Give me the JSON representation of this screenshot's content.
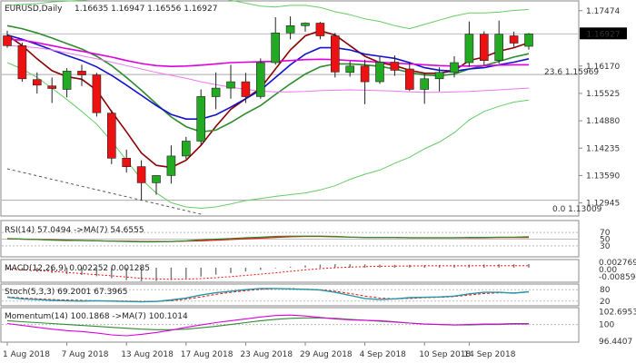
{
  "header": {
    "symbol_timeframe": "EURUSD,Daily",
    "ohlc": "1.16635 1.16947 1.16556 1.16927"
  },
  "price_panel": {
    "current_price_label": "1.16927",
    "fib_236_label": "23.6 1.15969",
    "fib_0_label": "0.0 1.13009"
  },
  "rsi_panel": {
    "label": "RSI(14) 57.0494 ->MA(7) 54.6555"
  },
  "macd_panel": {
    "label": "MACD(12,26,9) 0.002252 0.001285"
  },
  "stoch_panel": {
    "label": "Stoch(5,3,3) 69.2001 67.3965"
  },
  "momentum_panel": {
    "label": "Momentum(14) 100.1868 ->MA(7) 100.1014"
  },
  "colors": {
    "bull_candle": "#22aa22",
    "bear_candle": "#ee1111",
    "ma_fast": "#8b0000",
    "ma_mid": "#2e8b2e",
    "ma_blue": "#1111cc",
    "ma_magenta": "#dd00dd",
    "ma_pink": "#ee77ee",
    "bollinger": "#66cc66"
  },
  "chart_data": [
    {
      "type": "candlestick",
      "title": "EURUSD,Daily",
      "ylim": [
        1.1268,
        1.1764
      ],
      "y_ticks": [
        1.17474,
        1.16927,
        1.1617,
        1.15525,
        1.1488,
        1.14235,
        1.1359,
        1.12945
      ],
      "y_tick_labels": [
        "1.17474",
        "",
        "1.16170",
        "1.15525",
        "1.14880",
        "1.14235",
        "1.13590",
        "1.12945"
      ],
      "x_tick_labels": [
        "1 Aug 2018",
        "7 Aug 2018",
        "13 Aug 2018",
        "17 Aug 2018",
        "23 Aug 2018",
        "29 Aug 2018",
        "4 Sep 2018",
        "10 Sep 2018",
        "14 Sep 2018"
      ],
      "x_tick_index": [
        0,
        4,
        8,
        12,
        16,
        20,
        24,
        28,
        31
      ],
      "candles": [
        {
          "o": 1.1688,
          "h": 1.17,
          "l": 1.166,
          "c": 1.1665
        },
        {
          "o": 1.1665,
          "h": 1.1672,
          "l": 1.158,
          "c": 1.1587
        },
        {
          "o": 1.1585,
          "h": 1.1602,
          "l": 1.1552,
          "c": 1.1572
        },
        {
          "o": 1.157,
          "h": 1.159,
          "l": 1.153,
          "c": 1.1564
        },
        {
          "o": 1.1562,
          "h": 1.1612,
          "l": 1.1543,
          "c": 1.1605
        },
        {
          "o": 1.1605,
          "h": 1.162,
          "l": 1.157,
          "c": 1.1596
        },
        {
          "o": 1.1596,
          "h": 1.1601,
          "l": 1.1498,
          "c": 1.1507
        },
        {
          "o": 1.1506,
          "h": 1.1513,
          "l": 1.1386,
          "c": 1.14
        },
        {
          "o": 1.14,
          "h": 1.142,
          "l": 1.1366,
          "c": 1.138
        },
        {
          "o": 1.138,
          "h": 1.1395,
          "l": 1.1301,
          "c": 1.1342
        },
        {
          "o": 1.1342,
          "h": 1.136,
          "l": 1.1314,
          "c": 1.1359
        },
        {
          "o": 1.1359,
          "h": 1.143,
          "l": 1.134,
          "c": 1.1405
        },
        {
          "o": 1.1405,
          "h": 1.145,
          "l": 1.1398,
          "c": 1.144
        },
        {
          "o": 1.144,
          "h": 1.1562,
          "l": 1.143,
          "c": 1.1545
        },
        {
          "o": 1.1545,
          "h": 1.1602,
          "l": 1.1515,
          "c": 1.1565
        },
        {
          "o": 1.1565,
          "h": 1.162,
          "l": 1.154,
          "c": 1.158
        },
        {
          "o": 1.158,
          "h": 1.1601,
          "l": 1.153,
          "c": 1.1545
        },
        {
          "o": 1.1545,
          "h": 1.1635,
          "l": 1.154,
          "c": 1.1625
        },
        {
          "o": 1.1625,
          "h": 1.1732,
          "l": 1.162,
          "c": 1.1695
        },
        {
          "o": 1.1695,
          "h": 1.1734,
          "l": 1.168,
          "c": 1.1712
        },
        {
          "o": 1.1712,
          "h": 1.172,
          "l": 1.1698,
          "c": 1.1718
        },
        {
          "o": 1.1718,
          "h": 1.1721,
          "l": 1.168,
          "c": 1.1688
        },
        {
          "o": 1.1688,
          "h": 1.1695,
          "l": 1.159,
          "c": 1.1603
        },
        {
          "o": 1.1602,
          "h": 1.1628,
          "l": 1.1592,
          "c": 1.1617
        },
        {
          "o": 1.1617,
          "h": 1.1632,
          "l": 1.1527,
          "c": 1.158
        },
        {
          "o": 1.158,
          "h": 1.1638,
          "l": 1.1575,
          "c": 1.1626
        },
        {
          "o": 1.1626,
          "h": 1.1642,
          "l": 1.1594,
          "c": 1.1607
        },
        {
          "o": 1.161,
          "h": 1.1625,
          "l": 1.1558,
          "c": 1.1562
        },
        {
          "o": 1.1562,
          "h": 1.1601,
          "l": 1.1528,
          "c": 1.1587
        },
        {
          "o": 1.1587,
          "h": 1.1614,
          "l": 1.1557,
          "c": 1.1602
        },
        {
          "o": 1.1602,
          "h": 1.164,
          "l": 1.159,
          "c": 1.1625
        },
        {
          "o": 1.1625,
          "h": 1.1722,
          "l": 1.1615,
          "c": 1.1692
        },
        {
          "o": 1.1692,
          "h": 1.1699,
          "l": 1.1619,
          "c": 1.163
        },
        {
          "o": 1.163,
          "h": 1.1724,
          "l": 1.1623,
          "c": 1.1692
        },
        {
          "o": 1.1688,
          "h": 1.1698,
          "l": 1.1662,
          "c": 1.1671
        },
        {
          "o": 1.16635,
          "h": 1.16947,
          "l": 1.16556,
          "c": 1.16927
        }
      ],
      "overlays": [
        {
          "key": "ma_fast",
          "values": [
            1.169,
            1.1665,
            1.1634,
            1.1606,
            1.1592,
            1.1586,
            1.156,
            1.151,
            1.1462,
            1.1412,
            1.1383,
            1.1378,
            1.1395,
            1.143,
            1.1475,
            1.1515,
            1.154,
            1.1565,
            1.161,
            1.1655,
            1.1688,
            1.17,
            1.169,
            1.1665,
            1.164,
            1.1625,
            1.1618,
            1.1607,
            1.16,
            1.16,
            1.1606,
            1.163,
            1.1638,
            1.1652,
            1.166,
            1.1672
          ]
        },
        {
          "key": "ma_mid",
          "values": [
            1.1712,
            1.1705,
            1.1695,
            1.1683,
            1.167,
            1.1657,
            1.164,
            1.1618,
            1.159,
            1.156,
            1.1528,
            1.1497,
            1.1474,
            1.1462,
            1.1466,
            1.1484,
            1.1505,
            1.1524,
            1.155,
            1.1575,
            1.1598,
            1.1615,
            1.1622,
            1.1622,
            1.162,
            1.1616,
            1.161,
            1.1602,
            1.1596,
            1.1594,
            1.1598,
            1.161,
            1.1618,
            1.1628,
            1.1638,
            1.1646
          ]
        },
        {
          "key": "ma_blue",
          "values": [
            1.169,
            1.168,
            1.1668,
            1.1655,
            1.1642,
            1.163,
            1.1615,
            1.1595,
            1.1572,
            1.1548,
            1.1524,
            1.1503,
            1.1492,
            1.1492,
            1.1502,
            1.152,
            1.154,
            1.156,
            1.159,
            1.162,
            1.1645,
            1.166,
            1.166,
            1.1655,
            1.1645,
            1.164,
            1.1635,
            1.1625,
            1.1613,
            1.1607,
            1.1605,
            1.161,
            1.1613,
            1.162,
            1.1626,
            1.1634
          ]
        },
        {
          "key": "ma_magenta",
          "values": [
            1.168,
            1.1678,
            1.1672,
            1.1665,
            1.1658,
            1.1652,
            1.1645,
            1.1638,
            1.163,
            1.1623,
            1.1618,
            1.1616,
            1.1617,
            1.1619,
            1.1622,
            1.1625,
            1.1626,
            1.1627,
            1.1628,
            1.163,
            1.1632,
            1.1633,
            1.1632,
            1.163,
            1.1628,
            1.1626,
            1.1624,
            1.1622,
            1.162,
            1.1618,
            1.1617,
            1.1617,
            1.1618,
            1.1619,
            1.162,
            1.162
          ]
        },
        {
          "key": "ma_pink",
          "values": [
            1.1665,
            1.1663,
            1.166,
            1.1655,
            1.1648,
            1.1641,
            1.1634,
            1.1626,
            1.1618,
            1.161,
            1.1602,
            1.1595,
            1.1588,
            1.158,
            1.1573,
            1.1567,
            1.1562,
            1.1558,
            1.1556,
            1.1556,
            1.1557,
            1.1559,
            1.156,
            1.1561,
            1.156,
            1.1559,
            1.1558,
            1.1556,
            1.1555,
            1.1555,
            1.1556,
            1.1557,
            1.1559,
            1.1561,
            1.1563,
            1.1565
          ]
        },
        {
          "key": "bollinger",
          "values": [
            1.176,
            1.1762,
            1.1764,
            1.1768,
            1.177,
            1.1772,
            1.1775,
            1.178,
            1.179,
            1.1805,
            1.181,
            1.1808,
            1.18,
            1.179,
            1.178,
            1.1772,
            1.1765,
            1.1758,
            1.1756,
            1.176,
            1.176,
            1.1755,
            1.1745,
            1.1738,
            1.1728,
            1.1722,
            1.1712,
            1.1705,
            1.1715,
            1.1725,
            1.1735,
            1.1742,
            1.1742,
            1.1744,
            1.1748,
            1.175
          ]
        },
        {
          "key": "bollinger",
          "values": [
            1.1625,
            1.161,
            1.159,
            1.1565,
            1.1538,
            1.151,
            1.148,
            1.144,
            1.1395,
            1.135,
            1.1318,
            1.1295,
            1.1285,
            1.1282,
            1.1285,
            1.1292,
            1.13,
            1.1305,
            1.131,
            1.1314,
            1.1318,
            1.1325,
            1.1335,
            1.135,
            1.1362,
            1.1372,
            1.1388,
            1.1402,
            1.1422,
            1.1438,
            1.146,
            1.149,
            1.151,
            1.1522,
            1.1532,
            1.1537
          ]
        }
      ],
      "dashed_line": {
        "key": "ma_magenta",
        "points": [
          [
            0,
            1.1375
          ],
          [
            13,
            1.1268
          ]
        ]
      },
      "hlines": [
        1.15969,
        1.13009
      ]
    },
    {
      "type": "line",
      "title": "RSI(14) 57.0494 ->MA(7) 54.6555",
      "ylim": [
        0,
        100
      ],
      "y_tick_labels": [
        "70",
        "50",
        "30"
      ],
      "y_ticks": [
        70,
        50,
        30
      ],
      "series": [
        {
          "values": [
            52,
            50,
            49,
            47,
            46,
            46,
            45,
            44,
            43,
            42,
            42,
            43,
            45,
            48,
            50,
            52,
            54,
            56,
            58,
            59,
            59,
            59,
            58,
            56,
            55,
            55,
            55,
            54,
            54,
            54,
            54,
            55,
            55,
            56,
            56,
            57
          ]
        },
        {
          "values": [
            51,
            50,
            49,
            48,
            47,
            46,
            45,
            44,
            44,
            43,
            43,
            43,
            44,
            45,
            47,
            49,
            51,
            53,
            55,
            57,
            58,
            58,
            57,
            56,
            55,
            55,
            55,
            54,
            54,
            54,
            54,
            54,
            54,
            55,
            55,
            55
          ]
        }
      ]
    },
    {
      "type": "bar",
      "title": "MACD(12,26,9) 0.002252 0.001285",
      "ylim": [
        -0.008594,
        0.004
      ],
      "y_tick_labels": [
        "0.002769",
        "0.00",
        "-0.008594"
      ],
      "y_ticks": [
        0.002769,
        0.0,
        -0.008594
      ],
      "values": [
        -0.001,
        -0.0018,
        -0.0026,
        -0.0034,
        -0.004,
        -0.0046,
        -0.0054,
        -0.0066,
        -0.0078,
        -0.0086,
        -0.0084,
        -0.0078,
        -0.0068,
        -0.0056,
        -0.0044,
        -0.0034,
        -0.0024,
        -0.0014,
        -0.0004,
        0.0006,
        0.0014,
        0.002,
        0.0022,
        0.0022,
        0.0021,
        0.002,
        0.0019,
        0.0018,
        0.0017,
        0.0017,
        0.0018,
        0.002,
        0.0021,
        0.0022,
        0.0022,
        0.0023
      ],
      "signal": [
        -0.0008,
        -0.0012,
        -0.0017,
        -0.0023,
        -0.003,
        -0.0037,
        -0.0044,
        -0.0051,
        -0.0059,
        -0.0067,
        -0.0071,
        -0.0073,
        -0.0072,
        -0.0069,
        -0.0063,
        -0.0056,
        -0.0049,
        -0.0041,
        -0.0032,
        -0.0023,
        -0.0014,
        -0.0006,
        0.0,
        0.0004,
        0.0007,
        0.0009,
        0.001,
        0.0011,
        0.0012,
        0.0012,
        0.0012,
        0.0012,
        0.0013,
        0.0013,
        0.0013,
        0.0013
      ]
    },
    {
      "type": "line",
      "title": "Stoch(5,3,3) 69.2001 67.3965",
      "ylim": [
        0,
        100
      ],
      "y_tick_labels": [
        "80",
        "20"
      ],
      "y_ticks": [
        80,
        20
      ],
      "series": [
        {
          "values": [
            40,
            32,
            28,
            24,
            22,
            20,
            22,
            20,
            18,
            16,
            18,
            26,
            36,
            52,
            64,
            72,
            80,
            86,
            86,
            84,
            82,
            78,
            66,
            50,
            34,
            28,
            32,
            38,
            40,
            42,
            46,
            58,
            66,
            66,
            62,
            69
          ]
        },
        {
          "values": [
            42,
            36,
            32,
            28,
            26,
            24,
            22,
            21,
            20,
            18,
            18,
            22,
            30,
            42,
            55,
            66,
            75,
            82,
            85,
            85,
            83,
            80,
            72,
            60,
            46,
            36,
            32,
            34,
            38,
            40,
            44,
            52,
            60,
            64,
            64,
            67
          ]
        }
      ]
    },
    {
      "type": "line",
      "title": "Momentum(14) 100.1868 ->MA(7) 100.1014",
      "ylim": [
        96.4407,
        103.2
      ],
      "y_tick_labels": [
        "102.6953",
        "100",
        "96.4407"
      ],
      "y_ticks": [
        102.6953,
        100,
        96.4407
      ],
      "series": [
        {
          "values": [
            100.2,
            99.8,
            99.4,
            99.0,
            98.7,
            98.5,
            98.2,
            97.8,
            97.6,
            97.9,
            98.3,
            98.8,
            99.4,
            99.9,
            100.4,
            100.8,
            101.2,
            101.6,
            101.9,
            102.0,
            101.8,
            101.5,
            101.2,
            101.0,
            100.9,
            100.8,
            100.6,
            100.3,
            100.1,
            100.0,
            99.9,
            100.0,
            100.1,
            100.1,
            100.2,
            100.2
          ]
        },
        {
          "values": [
            100.8,
            100.6,
            100.4,
            100.2,
            100.0,
            99.8,
            99.6,
            99.4,
            99.2,
            99.0,
            98.9,
            98.9,
            99.0,
            99.3,
            99.6,
            100.0,
            100.4,
            100.8,
            101.1,
            101.3,
            101.4,
            101.4,
            101.3,
            101.1,
            100.9,
            100.7,
            100.5,
            100.3,
            100.1,
            100.0,
            99.9,
            99.9,
            100.0,
            100.0,
            100.1,
            100.1
          ]
        }
      ]
    }
  ]
}
